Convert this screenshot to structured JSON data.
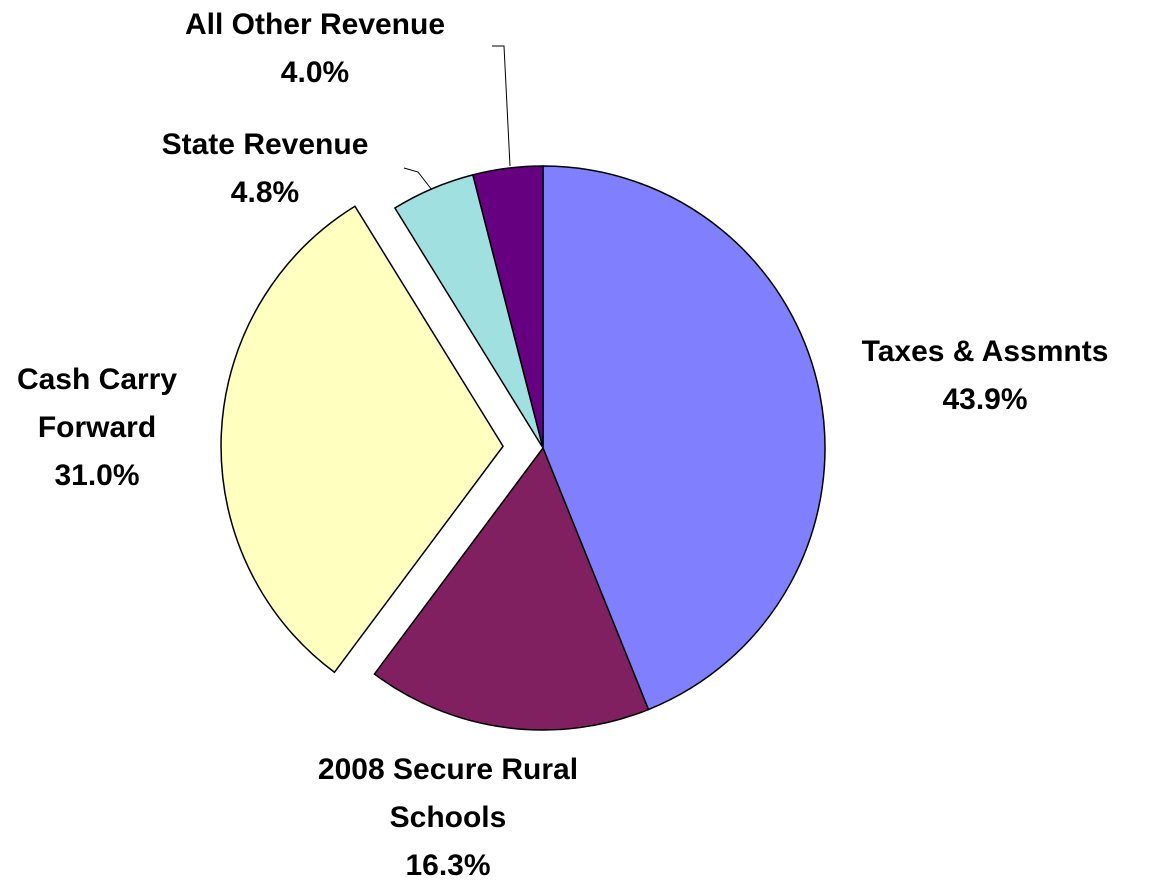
{
  "chart_data": {
    "type": "pie",
    "categories": [
      "Taxes & Assmnts",
      "2008 Secure Rural Schools",
      "Cash Carry Forward",
      "State Revenue",
      "All Other Revenue"
    ],
    "values": [
      43.9,
      16.3,
      31.0,
      4.8,
      4.0
    ],
    "value_labels": [
      "43.9%",
      "16.3%",
      "31.0%",
      "4.8%",
      "4.0%"
    ],
    "colors": [
      "#8080ff",
      "#802060",
      "#ffffc0",
      "#a0e0e0",
      "#660080"
    ],
    "exploded_slice": "Cash Carry Forward"
  }
}
